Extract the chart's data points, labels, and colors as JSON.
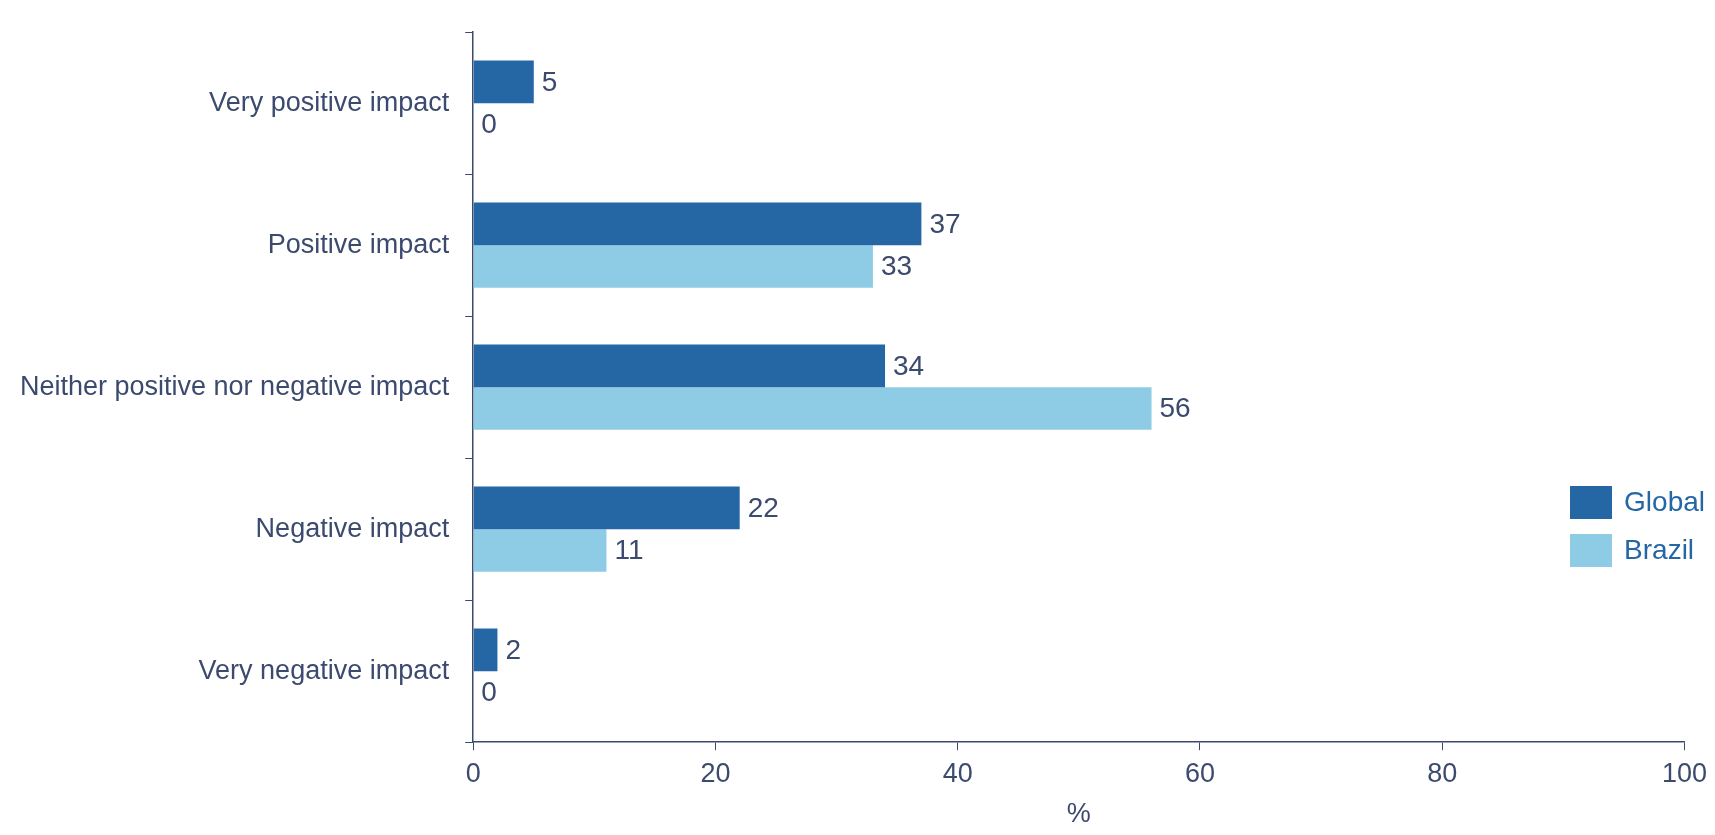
{
  "chart_data": {
    "type": "bar",
    "orientation": "horizontal",
    "xlabel": "%",
    "categories": [
      "Very positive impact",
      "Positive impact",
      "Neither positive nor negative impact",
      "Negative impact",
      "Very negative impact"
    ],
    "series": [
      {
        "name": "Global",
        "color": "#2566a5",
        "values": [
          5,
          37,
          34,
          22,
          2
        ]
      },
      {
        "name": "Brazil",
        "color": "#8ecce6",
        "values": [
          0,
          33,
          56,
          11,
          0
        ]
      }
    ],
    "xlim": [
      0,
      100
    ],
    "xticks": [
      0,
      20,
      40,
      60,
      80,
      100
    ],
    "grid": false,
    "legend": "right",
    "data_labels": true
  }
}
